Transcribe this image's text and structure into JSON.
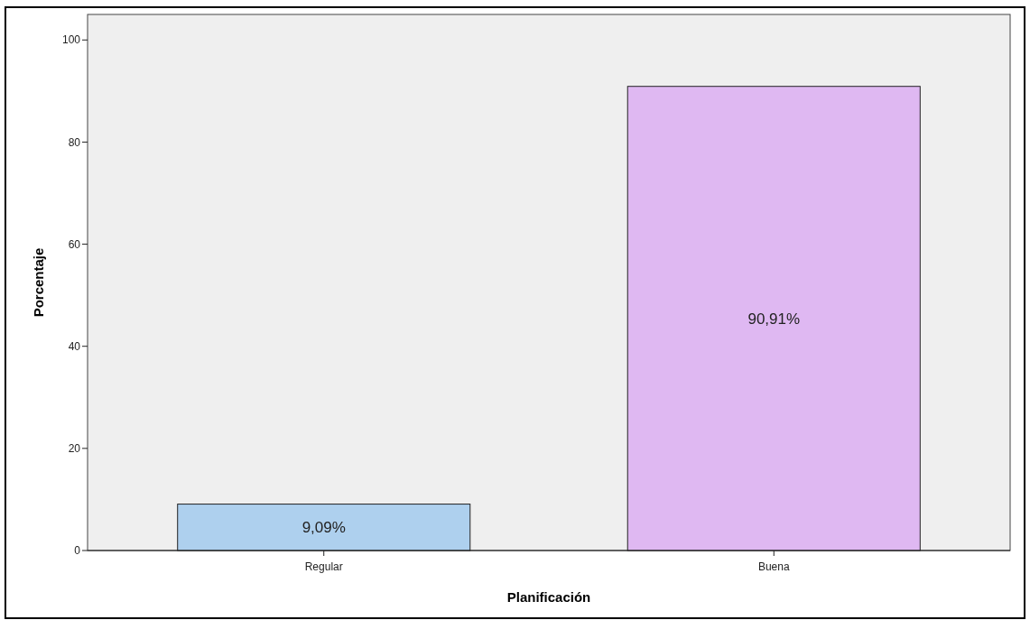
{
  "chart_data": {
    "type": "bar",
    "xlabel": "Planificación",
    "ylabel": "Porcentaje",
    "categories": [
      "Regular",
      "Buena"
    ],
    "values": [
      9.09,
      90.91
    ],
    "colors": [
      "#aed0ee",
      "#dfb8f2"
    ],
    "value_labels": [
      "9,09%",
      "90,91%"
    ],
    "ylim": [
      0,
      105
    ],
    "yticks": [
      0,
      20,
      40,
      60,
      80,
      100
    ],
    "grid": false
  }
}
